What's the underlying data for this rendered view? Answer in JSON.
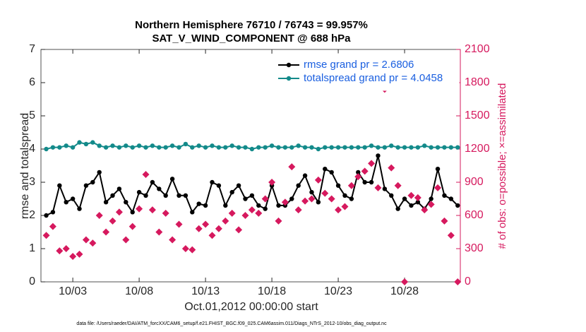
{
  "chart_data": {
    "type": "line",
    "title": "Northern Hemisphere 76710 / 76743 = 99.957%",
    "subtitle": "SAT_V_WIND_COMPONENT @ 688 hPa",
    "xlabel": "Oct.01,2012 00:00:00 start",
    "ylabel": "rmse and totalspread",
    "y2label": "# of obs: o=possible; ×=assimilated",
    "footnote": "data file: /Users/raeder/DAI/ATM_forcXX/CAM6_setup/f.e21.FHIST_BGC.f09_025.CAM6assim.011/Diags_NTrS_2012-10/obs_diag_output.nc",
    "x": [
      0,
      0.5,
      1,
      1.5,
      2,
      2.5,
      3,
      3.5,
      4,
      4.5,
      5,
      5.5,
      6,
      6.5,
      7,
      7.5,
      8,
      8.5,
      9,
      9.5,
      10,
      10.5,
      11,
      11.5,
      12,
      12.5,
      13,
      13.5,
      14,
      14.5,
      15,
      15.5,
      16,
      16.5,
      17,
      17.5,
      18,
      18.5,
      19,
      19.5,
      20,
      20.5,
      21,
      21.5,
      22,
      22.5,
      23,
      23.5,
      24,
      24.5,
      25,
      25.5,
      26,
      26.5,
      27,
      27.5,
      28,
      28.5,
      29,
      29.5,
      30,
      30.5,
      31
    ],
    "series": [
      {
        "name": "rmse grand pr = 2.6806",
        "color": "#000000",
        "marker": "circle",
        "values": [
          2.0,
          2.1,
          2.9,
          2.4,
          2.5,
          2.2,
          2.9,
          3.0,
          3.3,
          2.4,
          2.6,
          2.8,
          2.4,
          2.1,
          2.7,
          2.6,
          3.0,
          2.8,
          2.6,
          3.1,
          2.6,
          2.6,
          2.1,
          2.35,
          2.3,
          3.0,
          2.9,
          2.3,
          2.7,
          2.9,
          2.5,
          2.6,
          2.3,
          2.2,
          2.9,
          2.3,
          2.3,
          2.5,
          2.9,
          3.2,
          2.7,
          2.4,
          3.4,
          3.3,
          2.9,
          2.6,
          2.5,
          3.3,
          3.0,
          3.0,
          3.8,
          2.8,
          2.6,
          2.2,
          2.5,
          2.3,
          2.4,
          2.2,
          2.5,
          3.4,
          2.6,
          2.5,
          2.3
        ]
      },
      {
        "name": "totalspread grand pr = 4.0458",
        "color": "#138a8a",
        "marker": "circle",
        "values": [
          4.0,
          4.05,
          4.05,
          4.1,
          4.05,
          4.2,
          4.15,
          4.2,
          4.1,
          4.05,
          4.1,
          4.05,
          4.1,
          4.05,
          4.1,
          4.05,
          4.1,
          4.05,
          4.05,
          4.1,
          4.05,
          4.15,
          4.05,
          4.1,
          4.05,
          4.1,
          4.05,
          4.05,
          4.1,
          4.05,
          4.05,
          4.0,
          4.05,
          4.05,
          4.1,
          4.05,
          4.05,
          4.05,
          4.1,
          4.05,
          4.05,
          4.0,
          4.05,
          4.05,
          4.05,
          4.05,
          4.05,
          4.05,
          4.05,
          4.1,
          4.05,
          4.05,
          4.1,
          4.05,
          4.05,
          4.05,
          4.05,
          4.1,
          4.05,
          4.05,
          4.05,
          4.05,
          4.05
        ]
      },
      {
        "color": "#d6195e",
        "marker": "diamond",
        "axis": "y2",
        "line": false,
        "values": [
          420,
          500,
          280,
          300,
          230,
          250,
          380,
          350,
          600,
          450,
          550,
          630,
          380,
          500,
          660,
          970,
          650,
          450,
          620,
          380,
          520,
          300,
          290,
          480,
          520,
          420,
          480,
          550,
          620,
          470,
          600,
          650,
          620,
          750,
          900,
          550,
          720,
          1040,
          650,
          730,
          750,
          920,
          800,
          750,
          650,
          680,
          870,
          950,
          1000,
          1070,
          850,
          1740,
          1030,
          870,
          0,
          780,
          760,
          650,
          700,
          850,
          550,
          420,
          0
        ]
      }
    ],
    "xlim": [
      -0.4,
      31.2
    ],
    "xticks": [
      {
        "value": 2,
        "label": "10/03"
      },
      {
        "value": 7,
        "label": "10/08"
      },
      {
        "value": 12,
        "label": "10/13"
      },
      {
        "value": 17,
        "label": "10/18"
      },
      {
        "value": 22,
        "label": "10/23"
      },
      {
        "value": 27,
        "label": "10/28"
      }
    ],
    "ylim": [
      0,
      7
    ],
    "yticks": [
      0,
      1,
      2,
      3,
      4,
      5,
      6,
      7
    ],
    "y2lim": [
      0,
      2100
    ],
    "y2ticks": [
      0,
      300,
      600,
      900,
      1200,
      1500,
      1800,
      2100
    ],
    "legend": "upper right"
  }
}
